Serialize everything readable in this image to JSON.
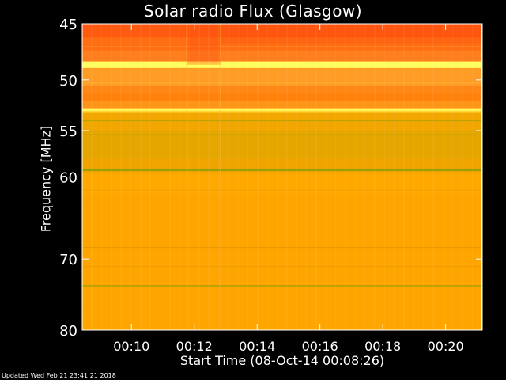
{
  "chart_data": {
    "type": "heatmap",
    "title": "Solar radio Flux (Glasgow)",
    "xlabel": "Start Time (08-Oct-14 00:08:26)",
    "ylabel": "Frequency [MHz]",
    "x_ticks": [
      "00:10",
      "00:12",
      "00:14",
      "00:16",
      "00:18",
      "00:20"
    ],
    "y_ticks": [
      45,
      50,
      55,
      60,
      70,
      80
    ],
    "xlim": [
      "00:08:26",
      "00:21:10"
    ],
    "ylim": [
      45,
      80
    ],
    "y_scale": "log",
    "colors": {
      "background": "#000000",
      "base": "#ffa500",
      "hot": "#ff5a10",
      "bright": "#ffff60",
      "green": "#8ca000"
    }
  },
  "footer": {
    "updated": "Updated Wed Feb 21 23:41:21 2018"
  }
}
